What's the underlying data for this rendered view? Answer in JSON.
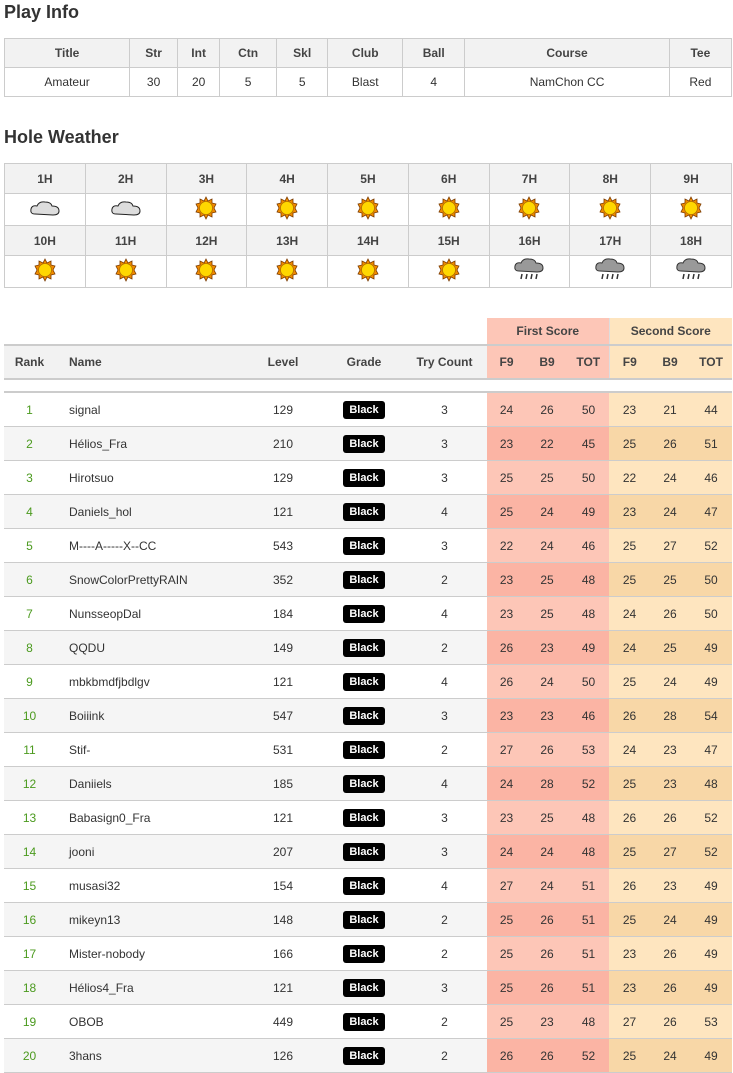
{
  "play_info": {
    "title": "Play Info",
    "headers": [
      "Title",
      "Str",
      "Int",
      "Ctn",
      "Skl",
      "Club",
      "Ball",
      "Course",
      "Tee"
    ],
    "values": [
      "Amateur",
      "30",
      "20",
      "5",
      "5",
      "Blast",
      "4",
      "NamChon CC",
      "Red"
    ]
  },
  "hole_weather": {
    "title": "Hole Weather",
    "holes": [
      {
        "label": "1H",
        "weather": "cloudy"
      },
      {
        "label": "2H",
        "weather": "cloudy"
      },
      {
        "label": "3H",
        "weather": "sunny"
      },
      {
        "label": "4H",
        "weather": "sunny"
      },
      {
        "label": "5H",
        "weather": "sunny"
      },
      {
        "label": "6H",
        "weather": "sunny"
      },
      {
        "label": "7H",
        "weather": "sunny"
      },
      {
        "label": "8H",
        "weather": "sunny"
      },
      {
        "label": "9H",
        "weather": "sunny"
      },
      {
        "label": "10H",
        "weather": "sunny"
      },
      {
        "label": "11H",
        "weather": "sunny"
      },
      {
        "label": "12H",
        "weather": "sunny"
      },
      {
        "label": "13H",
        "weather": "sunny"
      },
      {
        "label": "14H",
        "weather": "sunny"
      },
      {
        "label": "15H",
        "weather": "sunny"
      },
      {
        "label": "16H",
        "weather": "rain"
      },
      {
        "label": "17H",
        "weather": "rain"
      },
      {
        "label": "18H",
        "weather": "rain"
      }
    ]
  },
  "scores": {
    "group_first": "First Score",
    "group_second": "Second Score",
    "headers": [
      "Rank",
      "Name",
      "Level",
      "Grade",
      "Try Count",
      "F9",
      "B9",
      "TOT",
      "F9",
      "B9",
      "TOT"
    ],
    "colors": {
      "first": "#fdc6b7",
      "second": "#fee5bf",
      "rank": "#4b9a1e"
    },
    "rows": [
      [
        "1",
        "signal",
        "129",
        "Black",
        "3",
        "24",
        "26",
        "50",
        "23",
        "21",
        "44"
      ],
      [
        "2",
        "Hélios_Fra",
        "210",
        "Black",
        "3",
        "23",
        "22",
        "45",
        "25",
        "26",
        "51"
      ],
      [
        "3",
        "Hirotsuo",
        "129",
        "Black",
        "3",
        "25",
        "25",
        "50",
        "22",
        "24",
        "46"
      ],
      [
        "4",
        "Daniels_hol",
        "121",
        "Black",
        "4",
        "25",
        "24",
        "49",
        "23",
        "24",
        "47"
      ],
      [
        "5",
        "M----A-----X--CC",
        "543",
        "Black",
        "3",
        "22",
        "24",
        "46",
        "25",
        "27",
        "52"
      ],
      [
        "6",
        "SnowColorPrettyRAIN",
        "352",
        "Black",
        "2",
        "23",
        "25",
        "48",
        "25",
        "25",
        "50"
      ],
      [
        "7",
        "NunsseopDal",
        "184",
        "Black",
        "4",
        "23",
        "25",
        "48",
        "24",
        "26",
        "50"
      ],
      [
        "8",
        "QQDU",
        "149",
        "Black",
        "2",
        "26",
        "23",
        "49",
        "24",
        "25",
        "49"
      ],
      [
        "9",
        "mbkbmdfjbdlgv",
        "121",
        "Black",
        "4",
        "26",
        "24",
        "50",
        "25",
        "24",
        "49"
      ],
      [
        "10",
        "Boiiink",
        "547",
        "Black",
        "3",
        "23",
        "23",
        "46",
        "26",
        "28",
        "54"
      ],
      [
        "11",
        "Stif-",
        "531",
        "Black",
        "2",
        "27",
        "26",
        "53",
        "24",
        "23",
        "47"
      ],
      [
        "12",
        "Daniiels",
        "185",
        "Black",
        "4",
        "24",
        "28",
        "52",
        "25",
        "23",
        "48"
      ],
      [
        "13",
        "Babasign0_Fra",
        "121",
        "Black",
        "3",
        "23",
        "25",
        "48",
        "26",
        "26",
        "52"
      ],
      [
        "14",
        "jooni",
        "207",
        "Black",
        "3",
        "24",
        "24",
        "48",
        "25",
        "27",
        "52"
      ],
      [
        "15",
        "musasi32",
        "154",
        "Black",
        "4",
        "27",
        "24",
        "51",
        "26",
        "23",
        "49"
      ],
      [
        "16",
        "mikeyn13",
        "148",
        "Black",
        "2",
        "25",
        "26",
        "51",
        "25",
        "24",
        "49"
      ],
      [
        "17",
        "Mister-nobody",
        "166",
        "Black",
        "2",
        "25",
        "26",
        "51",
        "23",
        "26",
        "49"
      ],
      [
        "18",
        "Hélios4_Fra",
        "121",
        "Black",
        "3",
        "25",
        "26",
        "51",
        "23",
        "26",
        "49"
      ],
      [
        "19",
        "OBOB",
        "449",
        "Black",
        "2",
        "25",
        "23",
        "48",
        "27",
        "26",
        "53"
      ],
      [
        "20",
        "3hans",
        "126",
        "Black",
        "2",
        "26",
        "26",
        "52",
        "25",
        "24",
        "49"
      ]
    ]
  }
}
